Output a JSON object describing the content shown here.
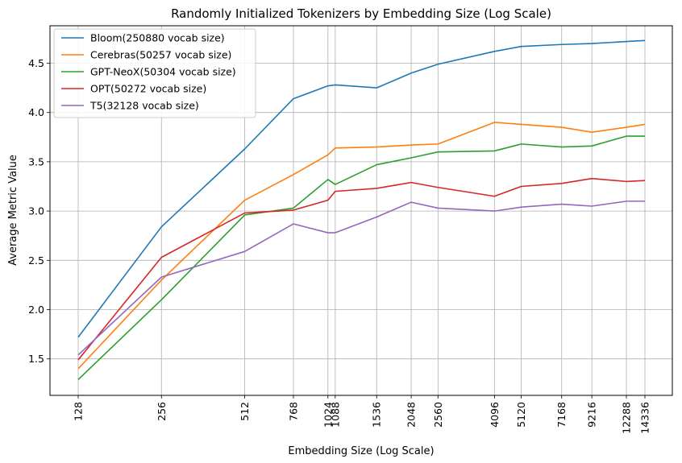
{
  "chart_data": {
    "type": "line",
    "title": "Randomly Initialized Tokenizers by Embedding Size (Log Scale)",
    "xlabel": "Embedding Size (Log Scale)",
    "ylabel": "Average Metric Value",
    "xscale": "log",
    "grid": true,
    "legend_position": "top-left",
    "x": [
      128,
      256,
      512,
      768,
      1024,
      1088,
      1536,
      2048,
      2560,
      4096,
      5120,
      7168,
      9216,
      12288,
      14336
    ],
    "x_tick_labels": [
      "128",
      "256",
      "512",
      "768",
      "1024",
      "1088",
      "1536",
      "2048",
      "2560",
      "4096",
      "5120",
      "7168",
      "9216",
      "12288",
      "14336"
    ],
    "ylim": [
      1.13,
      4.88
    ],
    "y_ticks": [
      1.5,
      2.0,
      2.5,
      3.0,
      3.5,
      4.0,
      4.5
    ],
    "y_tick_labels": [
      "1.5",
      "2.0",
      "2.5",
      "3.0",
      "3.5",
      "4.0",
      "4.5"
    ],
    "series": [
      {
        "name": "Bloom(250880 vocab size)",
        "color": "#1f77b4",
        "values": [
          1.72,
          2.84,
          3.63,
          4.14,
          4.27,
          4.28,
          4.25,
          4.4,
          4.49,
          4.62,
          4.67,
          4.69,
          4.7,
          4.72,
          4.73
        ]
      },
      {
        "name": "Cerebras(50257 vocab size)",
        "color": "#ff7f0e",
        "values": [
          1.4,
          2.3,
          3.11,
          3.37,
          3.57,
          3.64,
          3.65,
          3.67,
          3.68,
          3.9,
          3.88,
          3.85,
          3.8,
          3.85,
          3.88
        ]
      },
      {
        "name": "GPT-NeoX(50304 vocab size)",
        "color": "#2ca02c",
        "values": [
          1.29,
          2.1,
          2.96,
          3.03,
          3.32,
          3.27,
          3.47,
          3.54,
          3.6,
          3.61,
          3.68,
          3.65,
          3.66,
          3.76,
          3.76
        ]
      },
      {
        "name": "OPT(50272 vocab size)",
        "color": "#d62728",
        "values": [
          1.49,
          2.53,
          2.98,
          3.01,
          3.11,
          3.2,
          3.23,
          3.29,
          3.24,
          3.15,
          3.25,
          3.28,
          3.33,
          3.3,
          3.31
        ]
      },
      {
        "name": "T5(32128 vocab size)",
        "color": "#9467bd",
        "values": [
          1.54,
          2.33,
          2.59,
          2.87,
          2.78,
          2.78,
          2.94,
          3.09,
          3.03,
          3.0,
          3.04,
          3.07,
          3.05,
          3.1,
          3.1
        ]
      }
    ]
  }
}
